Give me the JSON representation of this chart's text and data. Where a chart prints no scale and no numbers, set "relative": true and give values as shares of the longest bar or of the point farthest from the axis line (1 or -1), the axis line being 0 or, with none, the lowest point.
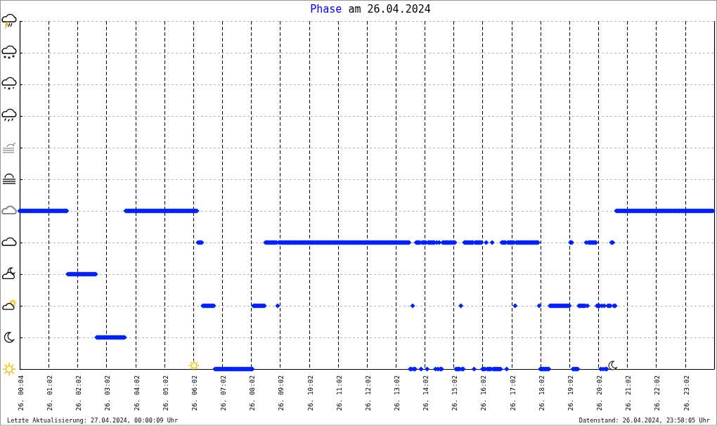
{
  "chart_data": {
    "type": "scatter",
    "title": "Phase am 26.04.2024",
    "annotations": [
      "Letzte Aktualisierung: 27.04.2024, 00:00:09 Uhr",
      "Datenstand: 26.04.2024, 23:58:05 Uhr"
    ],
    "color": "#0022ff",
    "marker": "diamond",
    "grid": true,
    "relative": true,
    "categories": [
      "26. 00:04",
      null,
      null,
      null,
      null,
      null,
      null,
      null,
      null,
      null,
      null,
      null,
      null,
      null,
      null,
      null,
      null,
      null,
      null,
      null,
      null,
      null,
      null,
      null,
      "26. 01:02",
      null,
      null,
      null,
      null,
      null,
      null,
      null,
      null,
      null,
      null,
      null,
      null,
      null,
      null,
      null,
      null,
      null,
      null,
      null,
      null,
      null,
      null,
      null,
      "26. 02:02",
      null,
      null,
      null,
      null,
      null,
      null,
      null,
      null,
      null,
      null,
      null,
      null,
      null,
      null,
      null,
      null,
      null,
      null,
      null,
      null,
      null,
      null,
      null,
      "26. 03:02",
      null,
      null,
      null,
      null,
      null,
      null,
      null,
      null,
      null,
      null,
      null,
      null,
      null,
      null,
      null,
      null,
      null,
      null,
      null,
      null,
      null,
      null,
      null,
      "26. 04:02",
      null,
      null,
      null,
      null,
      null,
      null,
      null,
      null,
      null,
      null,
      null,
      null,
      null,
      null,
      null,
      null,
      null,
      null,
      null,
      null,
      null,
      null,
      null,
      "26. 05:02",
      null,
      null,
      null,
      null,
      null,
      null,
      null,
      null,
      null,
      null,
      null,
      null,
      null,
      null,
      null,
      null,
      null,
      null,
      null,
      null,
      null,
      null,
      null,
      "26. 06:02",
      null,
      null,
      null,
      null,
      null,
      null,
      null,
      null,
      null,
      null,
      null,
      null,
      null,
      null,
      null,
      null,
      null,
      null,
      null,
      null,
      null,
      null,
      null,
      "26. 07:02",
      null,
      null,
      null,
      null,
      null,
      null,
      null,
      null,
      null,
      null,
      null,
      null,
      null,
      null,
      null,
      null,
      null,
      null,
      null,
      null,
      null,
      null,
      null,
      "26. 08:02",
      null,
      null,
      null,
      null,
      null,
      null,
      null,
      null,
      null,
      null,
      null,
      null,
      null,
      null,
      null,
      null,
      null,
      null,
      null,
      null,
      null,
      null,
      null,
      "26. 09:02",
      null,
      null,
      null,
      null,
      null,
      null,
      null,
      null,
      null,
      null,
      null,
      null,
      null,
      null,
      null,
      null,
      null,
      null,
      null,
      null,
      null,
      null,
      null,
      "26. 10:02",
      null,
      null,
      null,
      null,
      null,
      null,
      null,
      null,
      null,
      null,
      null,
      null,
      null,
      null,
      null,
      null,
      null,
      null,
      null,
      null,
      null,
      null,
      null,
      "26. 11:02",
      null,
      null,
      null,
      null,
      null,
      null,
      null,
      null,
      null,
      null,
      null,
      null,
      null,
      null,
      null,
      null,
      null,
      null,
      null,
      null,
      null,
      null,
      null,
      "26. 12:02",
      null,
      null,
      null,
      null,
      null,
      null,
      null,
      null,
      null,
      null,
      null,
      null,
      null,
      null,
      null,
      null,
      null,
      null,
      null,
      null,
      null,
      null,
      null,
      "26. 13:02",
      null,
      null,
      null,
      null,
      null,
      null,
      null,
      null,
      null,
      null,
      null,
      null,
      null,
      null,
      null,
      null,
      null,
      null,
      null,
      null,
      null,
      null,
      null,
      "26. 14:02",
      null,
      null,
      null,
      null,
      null,
      null,
      null,
      null,
      null,
      null,
      null,
      null,
      null,
      null,
      null,
      null,
      null,
      null,
      null,
      null,
      null,
      null,
      null,
      "26. 15:02",
      null,
      null,
      null,
      null,
      null,
      null,
      null,
      null,
      null,
      null,
      null,
      null,
      null,
      null,
      null,
      null,
      null,
      null,
      null,
      null,
      null,
      null,
      null,
      "26. 16:02",
      null,
      null,
      null,
      null,
      null,
      null,
      null,
      null,
      null,
      null,
      null,
      null,
      null,
      null,
      null,
      null,
      null,
      null,
      null,
      null,
      null,
      null,
      null,
      "26. 17:02",
      null,
      null,
      null,
      null,
      null,
      null,
      null,
      null,
      null,
      null,
      null,
      null,
      null,
      null,
      null,
      null,
      null,
      null,
      null,
      null,
      null,
      null,
      null,
      "26. 18:02",
      null,
      null,
      null,
      null,
      null,
      null,
      null,
      null,
      null,
      null,
      null,
      null,
      null,
      null,
      null,
      null,
      null,
      null,
      null,
      null,
      null,
      null,
      null,
      "26. 19:02",
      null,
      null,
      null,
      null,
      null,
      null,
      null,
      null,
      null,
      null,
      null,
      null,
      null,
      null,
      null,
      null,
      null,
      null,
      null,
      null,
      null,
      null,
      null,
      "26. 20:02",
      null,
      null,
      null,
      null,
      null,
      null,
      null,
      null,
      null,
      null,
      null,
      null,
      null,
      null,
      null,
      null,
      null,
      null,
      null,
      null,
      null,
      null,
      null,
      "26. 21:02",
      null,
      null,
      null,
      null,
      null,
      null,
      null,
      null,
      null,
      null,
      null,
      null,
      null,
      null,
      null,
      null,
      null,
      null,
      null,
      null,
      null,
      null,
      null,
      "26. 22:02",
      null,
      null,
      null,
      null,
      null,
      null,
      null,
      null,
      null,
      null,
      null,
      null,
      null,
      null,
      null,
      null,
      null,
      null,
      null,
      null,
      null,
      null,
      null,
      "26. 23:02",
      null,
      null,
      null,
      null,
      null,
      null,
      null,
      null,
      null,
      null,
      null,
      null,
      null,
      null,
      null,
      null,
      null,
      null,
      null,
      null,
      null,
      null,
      null
    ],
    "values": [
      1,
      1,
      1,
      1,
      1,
      1,
      1,
      1,
      1,
      1,
      1,
      1,
      1,
      1,
      1,
      1,
      1,
      1,
      1,
      1,
      1,
      1,
      1,
      1,
      1,
      1,
      1,
      1,
      1,
      1,
      1,
      1,
      1,
      1,
      1,
      1,
      1,
      1,
      1,
      1,
      0.6,
      0.6,
      0.6,
      0.6,
      0.6,
      0.6,
      0.6,
      0.6,
      0.6,
      0.6,
      0.6,
      0.6,
      0.6,
      0.6,
      0.6,
      0.6,
      0.6,
      0.6,
      0.6,
      0.6,
      0.6,
      0.6,
      0.6,
      0.6,
      0.2,
      0.2,
      0.2,
      0.2,
      0.2,
      0.2,
      0.2,
      0.2,
      0.2,
      0.2,
      0.2,
      0.2,
      0.2,
      0.2,
      0.2,
      0.2,
      0.2,
      0.2,
      0.2,
      0.2,
      0.2,
      0.2,
      0.2,
      0.2,
      1,
      1,
      1,
      1,
      1,
      1,
      1,
      1,
      1,
      1,
      1,
      1,
      1,
      1,
      1,
      1,
      1,
      1,
      1,
      1,
      1,
      1,
      1,
      1,
      1,
      1,
      1,
      1,
      1,
      1,
      1,
      1,
      1,
      1,
      1,
      1,
      1,
      1,
      1,
      1,
      1,
      1,
      1,
      1,
      1,
      1,
      1,
      1,
      1,
      1,
      1,
      1,
      1,
      1,
      1,
      1,
      1,
      1,
      1,
      1,
      0.8,
      0.8,
      0.8,
      0.8,
      0.4,
      0.4,
      0.4,
      0.4,
      0.4,
      0.4,
      0.4,
      0.4,
      0.4,
      0.4,
      0,
      0,
      0,
      0,
      0,
      0,
      0,
      0,
      0,
      0,
      0,
      0,
      0,
      0,
      0,
      0,
      0,
      0,
      0,
      0,
      0,
      0,
      0,
      0,
      0,
      0,
      0,
      0,
      0,
      0,
      0,
      0,
      0.4,
      0.4,
      0.4,
      0.4,
      0.4,
      0.4,
      0.4,
      0.4,
      0.4,
      0.4,
      0.8,
      0.8,
      0.8,
      0.8,
      0.8,
      0.8,
      0.8,
      0.8,
      0.8,
      0.8,
      0.4,
      0.8,
      0.8,
      0.8,
      0.8,
      0.8,
      0.8,
      0.8,
      0.8,
      0.8,
      0.8,
      0.8,
      0.8,
      0.8,
      0.8,
      0.8,
      0.8,
      0.8,
      0.8,
      0.8,
      0.8,
      0.8,
      0.8,
      0.8,
      0.8,
      0.8,
      0.8,
      0.8,
      0.8,
      0.8,
      0.8,
      0.8,
      0.8,
      0.8,
      0.8,
      0.8,
      0.8,
      0.8,
      0.8,
      0.8,
      0.8,
      0.8,
      0.8,
      0.8,
      0.8,
      0.8,
      0.8,
      0.8,
      0.8,
      0.8,
      0.8,
      0.8,
      0.8,
      0.8,
      0.8,
      0.8,
      0.8,
      0.8,
      0.8,
      0.8,
      0.8,
      0.8,
      0.8,
      0.8,
      0.8,
      0.8,
      0.8,
      0.8,
      0.8,
      0.8,
      0.8,
      0.8,
      0.8,
      0.8,
      0.8,
      0.8,
      0.8,
      0.8,
      0.8,
      0.8,
      0.8,
      0.8,
      0.8,
      0.8,
      0.8,
      0.8,
      0.8,
      0.8,
      0.8,
      0.8,
      0.8,
      0.8,
      0.8,
      0.8,
      0.8,
      0.8,
      0.8,
      0.8,
      0.8,
      0.8,
      0.8,
      0.8,
      0.8,
      0.8,
      0.8,
      0.8,
      0.8,
      0.8,
      0.8,
      0.8,
      0,
      0,
      0.4,
      0,
      0,
      0.8,
      0.8,
      0.8,
      0.8,
      0,
      0.8,
      0.8,
      0.8,
      0.8,
      0,
      0.8,
      0.8,
      0.8,
      0.8,
      0.8,
      0.8,
      0,
      0.8,
      0,
      0.8,
      0,
      0,
      0.8,
      0.8,
      0.8,
      0.8,
      0.8,
      0.8,
      0.8,
      0.8,
      0.8,
      0.8,
      0.8,
      0,
      0,
      0,
      0,
      0.4,
      0,
      0,
      0.8,
      0.8,
      0.8,
      0.8,
      0.8,
      0.8,
      0.8,
      0.8,
      0,
      0.8,
      0.8,
      0.8,
      0.8,
      0.8,
      0.8,
      0,
      0,
      0,
      0.8,
      0,
      0,
      0,
      0,
      0.8,
      0,
      0,
      0,
      0,
      0,
      0,
      0,
      0.8,
      0.8,
      0.8,
      0.8,
      0,
      0.8,
      0.8,
      0.8,
      0.8,
      0.8,
      0.8,
      0.4,
      0.8,
      0.8,
      0.8,
      0.8,
      0.8,
      0.8,
      0.8,
      0.8,
      0.8,
      0.8,
      0.8,
      0.8,
      0.8,
      0.8,
      0.8,
      0.8,
      0.8,
      0.8,
      0.8,
      0.4,
      0,
      0,
      0,
      0,
      0,
      0,
      0,
      0,
      0.4,
      0.4,
      0.4,
      0.4,
      0.4,
      0.4,
      0.4,
      0.4,
      0.4,
      0.4,
      0.4,
      0.4,
      0.4,
      0.4,
      0.4,
      0.4,
      0.4,
      0.8,
      0.8,
      0,
      0,
      0,
      0,
      0,
      0.4,
      0.4,
      0.4,
      0.4,
      0.4,
      0.4,
      0.8,
      0.4,
      0.8,
      0.8,
      0.8,
      0.8,
      0.8,
      0.8,
      0.8,
      0.4,
      0.4,
      0.4,
      0,
      0.4,
      0,
      0.4,
      0,
      0,
      0.4,
      0.4,
      0.4,
      0.8,
      0.8,
      0.4,
      0.4,
      1,
      1,
      1,
      1,
      1,
      1,
      1,
      1,
      1,
      1,
      1,
      1,
      1,
      1,
      1,
      1,
      1,
      1,
      1,
      1,
      1,
      1,
      1,
      1,
      1,
      1,
      1,
      1,
      1,
      1,
      1,
      1,
      1,
      1,
      1,
      1,
      1,
      1,
      1,
      1,
      1,
      1,
      1,
      1,
      1,
      1,
      1,
      1,
      1,
      1,
      1,
      1,
      1,
      1,
      1,
      1,
      1,
      1,
      1,
      1,
      1,
      1,
      1,
      1,
      1,
      1,
      1,
      1,
      1,
      1,
      1,
      1,
      1,
      1,
      1,
      1,
      1,
      1,
      1,
      1,
      1
    ]
  }
}
